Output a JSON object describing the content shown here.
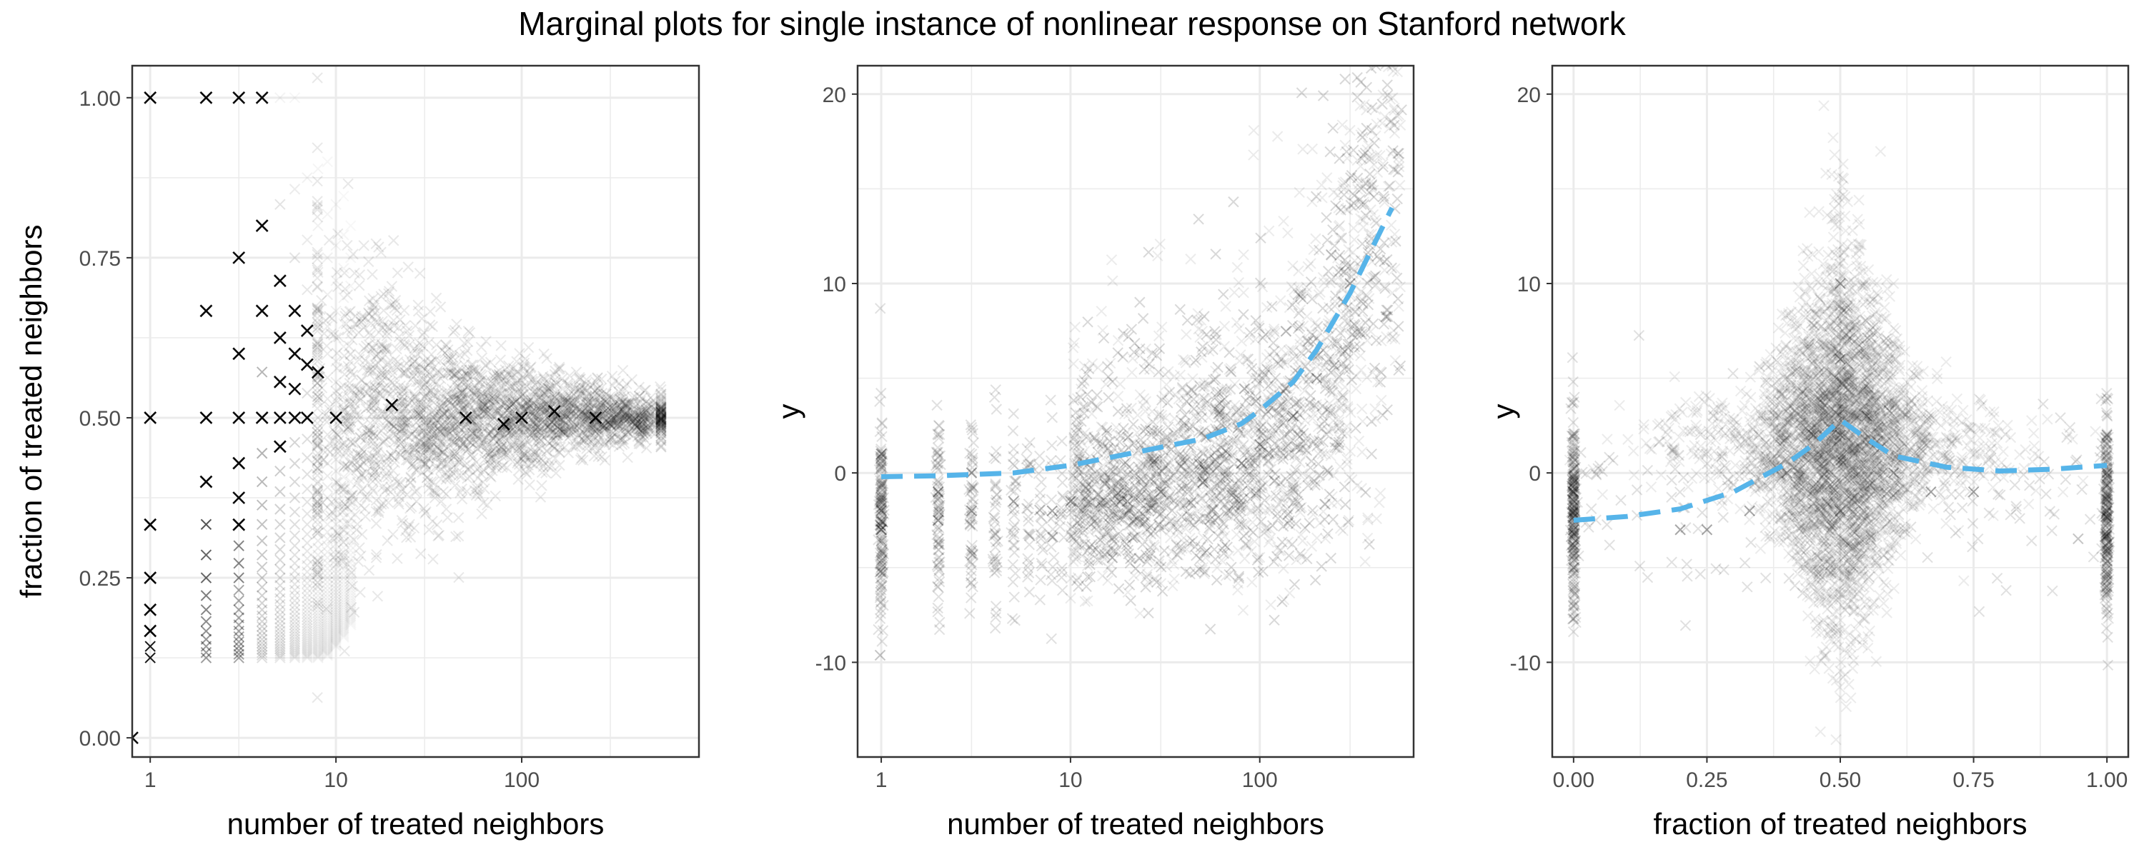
{
  "title": "Marginal plots for single instance of nonlinear response on Stanford network",
  "colors": {
    "points": "#000000",
    "fit_line": "#56b4e9",
    "grid": "#ebebeb",
    "border": "#333333"
  },
  "chart_data": [
    {
      "type": "scatter",
      "xlabel": "number of treated neighbors",
      "ylabel": "fraction of treated neighbors",
      "x_scale": "log",
      "xlim": [
        0.8,
        900
      ],
      "ylim": [
        -0.03,
        1.05
      ],
      "x_ticks": [
        1,
        10,
        100
      ],
      "x_tick_labels": [
        "1",
        "10",
        "100"
      ],
      "y_ticks": [
        0,
        0.25,
        0.5,
        0.75,
        1
      ],
      "y_tick_labels": [
        "0.00",
        "0.25",
        "0.50",
        "0.75",
        "1.00"
      ],
      "grid": true,
      "marker": "x",
      "series": [
        {
          "values_description": "points (x = treated count, y = treated fraction)",
          "x": [
            0.8,
            1,
            1,
            1,
            1,
            1,
            1,
            2,
            2,
            2,
            2,
            3,
            3,
            3,
            3,
            3,
            3,
            3,
            4,
            4,
            4,
            4,
            5,
            5,
            5,
            5,
            5,
            6,
            6,
            6,
            6,
            7,
            7,
            7,
            8,
            10,
            20,
            50,
            80,
            100,
            150,
            250
          ],
          "y": [
            0.0,
            1.0,
            0.5,
            0.333,
            0.25,
            0.2,
            0.167,
            1.0,
            0.667,
            0.5,
            0.4,
            1.0,
            0.75,
            0.6,
            0.5,
            0.429,
            0.375,
            0.333,
            1.0,
            0.8,
            0.667,
            0.5,
            0.714,
            0.625,
            0.556,
            0.5,
            0.455,
            0.667,
            0.6,
            0.545,
            0.5,
            0.636,
            0.583,
            0.5,
            0.571,
            0.5,
            0.52,
            0.5,
            0.49,
            0.5,
            0.51,
            0.5
          ]
        }
      ]
    },
    {
      "type": "scatter",
      "xlabel": "number of treated neighbors",
      "ylabel": "y",
      "x_scale": "log",
      "xlim": [
        0.75,
        650
      ],
      "ylim": [
        -15,
        21.5
      ],
      "x_ticks": [
        1,
        10,
        100
      ],
      "x_tick_labels": [
        "1",
        "10",
        "100"
      ],
      "y_ticks": [
        -10,
        0,
        10,
        20
      ],
      "y_tick_labels": [
        "-10",
        "0",
        "10",
        "20"
      ],
      "grid": true,
      "marker": "x",
      "series": [
        {
          "values_description": "points",
          "x": [
            1,
            1,
            1,
            2,
            2,
            3,
            3,
            5,
            8,
            10,
            20,
            30,
            50,
            80,
            100,
            150,
            200,
            300
          ],
          "y": [
            -3,
            -2,
            1,
            -2.5,
            -1,
            -2,
            0,
            -1.5,
            -2,
            -1.5,
            -1.5,
            -1,
            -0.5,
            0.5,
            1.5,
            3,
            5,
            10
          ]
        },
        {
          "name": "",
          "line_style": "dashed",
          "x": [
            1,
            2,
            5,
            10,
            20,
            50,
            80,
            100,
            150,
            200,
            300,
            500
          ],
          "y": [
            -0.2,
            -0.15,
            0.0,
            0.4,
            1.0,
            1.8,
            2.6,
            3.3,
            4.8,
            6.5,
            9.5,
            14
          ]
        }
      ]
    },
    {
      "type": "scatter",
      "xlabel": "fraction of treated neighbors",
      "ylabel": "y",
      "xlim": [
        -0.04,
        1.04
      ],
      "ylim": [
        -15,
        21.5
      ],
      "x_ticks": [
        0,
        0.25,
        0.5,
        0.75,
        1
      ],
      "x_tick_labels": [
        "0.00",
        "0.25",
        "0.50",
        "0.75",
        "1.00"
      ],
      "y_ticks": [
        -10,
        0,
        10,
        20
      ],
      "y_tick_labels": [
        "-10",
        "0",
        "10",
        "20"
      ],
      "grid": true,
      "marker": "x",
      "series": [
        {
          "values_description": "points",
          "x": [
            0,
            0,
            0,
            0.2,
            0.25,
            0.33,
            0.4,
            0.45,
            0.5,
            0.5,
            0.5,
            0.5,
            0.55,
            0.6,
            0.67,
            0.75,
            1,
            1,
            1
          ],
          "y": [
            -5,
            -3,
            -1,
            -3,
            -3,
            -2,
            0,
            2,
            -2,
            2,
            6,
            10,
            3,
            0,
            -1,
            -1,
            -2,
            0,
            2
          ]
        },
        {
          "name": "",
          "line_style": "dashed",
          "x": [
            0,
            0.1,
            0.2,
            0.3,
            0.4,
            0.45,
            0.5,
            0.55,
            0.6,
            0.7,
            0.8,
            0.9,
            1.0
          ],
          "y": [
            -2.5,
            -2.3,
            -1.9,
            -1.0,
            0.5,
            1.5,
            2.8,
            1.8,
            0.9,
            0.3,
            0.1,
            0.2,
            0.4
          ]
        }
      ]
    }
  ]
}
